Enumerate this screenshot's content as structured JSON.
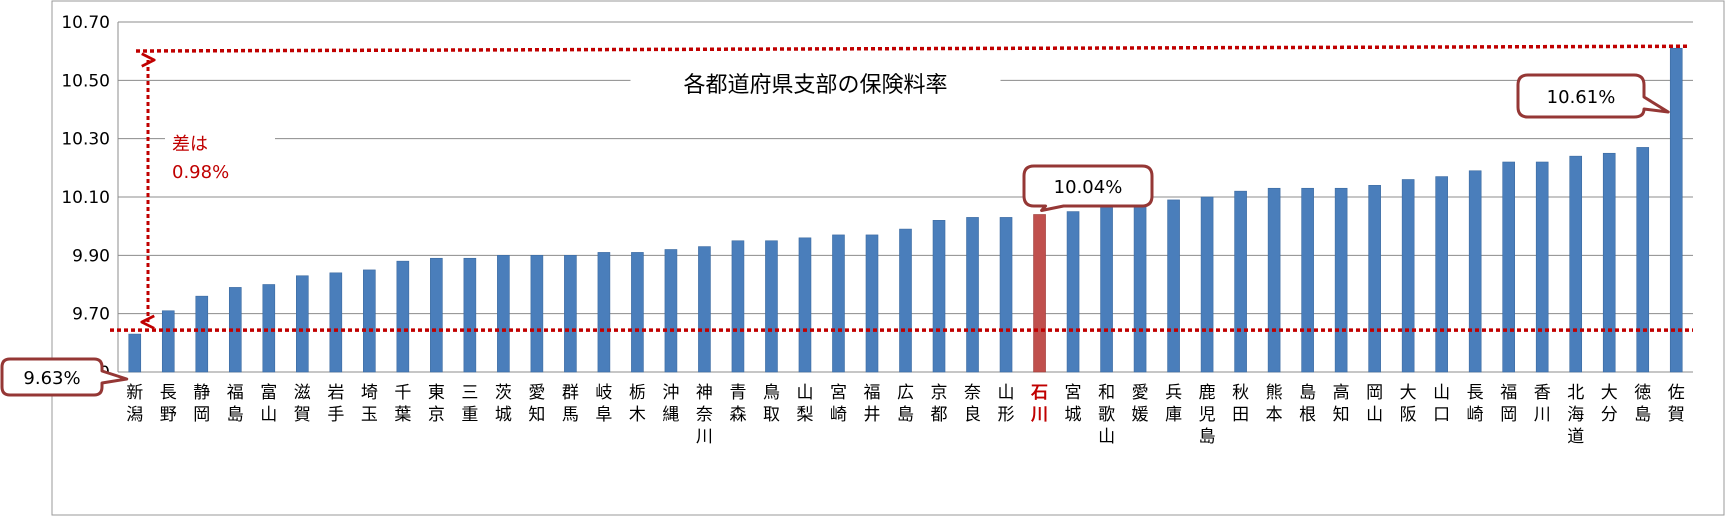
{
  "chart_data": {
    "type": "bar",
    "title": "各都道府県支部の保険料率",
    "ylim": [
      9.5,
      10.7
    ],
    "yticks": [
      "9.50",
      "9.70",
      "9.90",
      "10.10",
      "10.30",
      "10.50",
      "10.70"
    ],
    "grid": true,
    "categories": [
      "新潟",
      "長野",
      "静岡",
      "福島",
      "富山",
      "滋賀",
      "岩手",
      "埼玉",
      "千葉",
      "東京",
      "三重",
      "茨城",
      "愛知",
      "群馬",
      "岐阜",
      "栃木",
      "沖縄",
      "神奈川",
      "青森",
      "鳥取",
      "山梨",
      "宮崎",
      "福井",
      "広島",
      "京都",
      "奈良",
      "山形",
      "石川",
      "宮城",
      "和歌山",
      "愛媛",
      "兵庫",
      "鹿児島",
      "秋田",
      "熊本",
      "島根",
      "高知",
      "岡山",
      "大阪",
      "山口",
      "長崎",
      "福岡",
      "香川",
      "北海道",
      "大分",
      "徳島",
      "佐賀"
    ],
    "values": [
      9.63,
      9.71,
      9.76,
      9.79,
      9.8,
      9.83,
      9.84,
      9.85,
      9.88,
      9.89,
      9.89,
      9.9,
      9.9,
      9.9,
      9.91,
      9.91,
      9.92,
      9.93,
      9.95,
      9.95,
      9.96,
      9.97,
      9.97,
      9.99,
      10.02,
      10.03,
      10.03,
      10.04,
      10.05,
      10.08,
      10.09,
      10.09,
      10.1,
      10.12,
      10.13,
      10.13,
      10.13,
      10.14,
      10.16,
      10.17,
      10.19,
      10.22,
      10.22,
      10.24,
      10.25,
      10.27,
      10.61
    ],
    "highlight_category": "石川",
    "colors": {
      "bar": "#4a7ebb",
      "highlight": "#c0504d",
      "annotation": "#c00000",
      "callout_border": "#953735"
    },
    "annotations": {
      "min_label": "9.63%",
      "max_label": "10.61%",
      "highlight_label": "10.04%",
      "difference_line1": "差は",
      "difference_line2": "0.98%"
    }
  }
}
